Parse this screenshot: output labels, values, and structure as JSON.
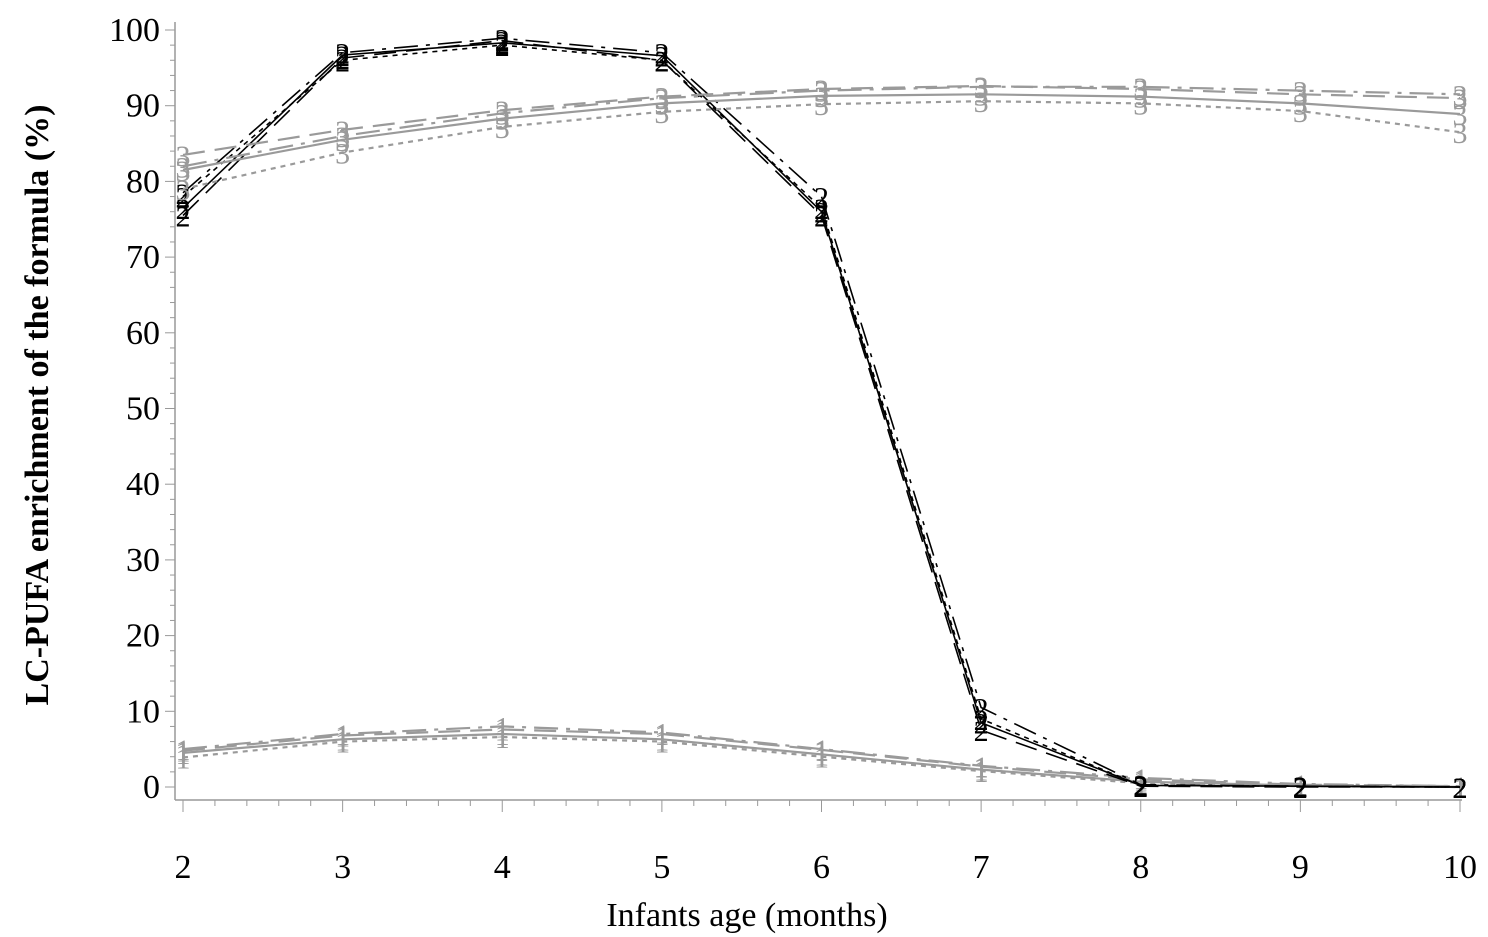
{
  "chart_data": {
    "type": "line",
    "title": "",
    "xlabel": "Infants age (months)",
    "ylabel": "LC-PUFA enrichment of the formula (%)",
    "x": [
      2,
      3,
      4,
      5,
      6,
      7,
      8,
      9,
      10
    ],
    "xlim": [
      2,
      10
    ],
    "ylim": [
      0,
      100
    ],
    "xticks": [
      "2",
      "3",
      "4",
      "5",
      "6",
      "7",
      "8",
      "9",
      "10"
    ],
    "yticks": [
      "0",
      "10",
      "20",
      "30",
      "40",
      "50",
      "60",
      "70",
      "80",
      "90",
      "100"
    ],
    "grid": false,
    "legend": "none",
    "series": [
      {
        "marker": "1",
        "color": "#9a9a9a",
        "dash": "solid",
        "values": [
          4.5,
          6.3,
          7.0,
          6.3,
          4.3,
          2.3,
          0.7,
          0.2,
          0.0
        ]
      },
      {
        "marker": "1",
        "color": "#9a9a9a",
        "dash": "dash",
        "values": [
          4.8,
          6.8,
          7.6,
          7.0,
          4.9,
          2.7,
          1.0,
          0.3,
          0.1
        ]
      },
      {
        "marker": "1",
        "color": "#9a9a9a",
        "dash": "dot",
        "values": [
          3.9,
          6.0,
          6.6,
          6.0,
          4.0,
          2.1,
          0.5,
          0.1,
          0.0
        ]
      },
      {
        "marker": "1",
        "color": "#9a9a9a",
        "dash": "dashdot",
        "values": [
          5.0,
          7.0,
          8.0,
          7.2,
          5.0,
          2.8,
          1.2,
          0.4,
          0.1
        ]
      },
      {
        "marker": "2",
        "color": "#000000",
        "dash": "solid",
        "values": [
          76.5,
          96.7,
          98.3,
          96.6,
          76.0,
          8.5,
          0.2,
          0.1,
          0.0
        ]
      },
      {
        "marker": "2",
        "color": "#000000",
        "dash": "dash",
        "values": [
          75.5,
          96.3,
          98.6,
          96.0,
          75.5,
          7.5,
          0.1,
          0.0,
          0.0
        ]
      },
      {
        "marker": "2",
        "color": "#000000",
        "dash": "dot",
        "values": [
          78.0,
          96.0,
          98.0,
          96.0,
          76.5,
          9.0,
          0.2,
          0.1,
          0.0
        ]
      },
      {
        "marker": "2",
        "color": "#000000",
        "dash": "dashdot",
        "values": [
          78.5,
          97.0,
          98.9,
          97.0,
          78.0,
          10.5,
          0.3,
          0.1,
          0.0
        ]
      },
      {
        "marker": "3",
        "color": "#9a9a9a",
        "dash": "solid",
        "values": [
          81.5,
          85.5,
          88.3,
          90.3,
          91.3,
          91.5,
          91.2,
          90.3,
          88.9
        ]
      },
      {
        "marker": "3",
        "color": "#9a9a9a",
        "dash": "dash",
        "values": [
          83.5,
          86.8,
          89.4,
          91.2,
          92.2,
          92.6,
          92.2,
          91.5,
          91.0
        ]
      },
      {
        "marker": "3",
        "color": "#9a9a9a",
        "dash": "dot",
        "values": [
          79.0,
          83.8,
          87.2,
          89.2,
          90.2,
          90.6,
          90.3,
          89.3,
          86.5
        ]
      },
      {
        "marker": "3",
        "color": "#9a9a9a",
        "dash": "dashdot",
        "values": [
          82.0,
          86.0,
          89.0,
          91.0,
          92.0,
          92.5,
          92.5,
          92.0,
          91.5
        ]
      }
    ]
  }
}
